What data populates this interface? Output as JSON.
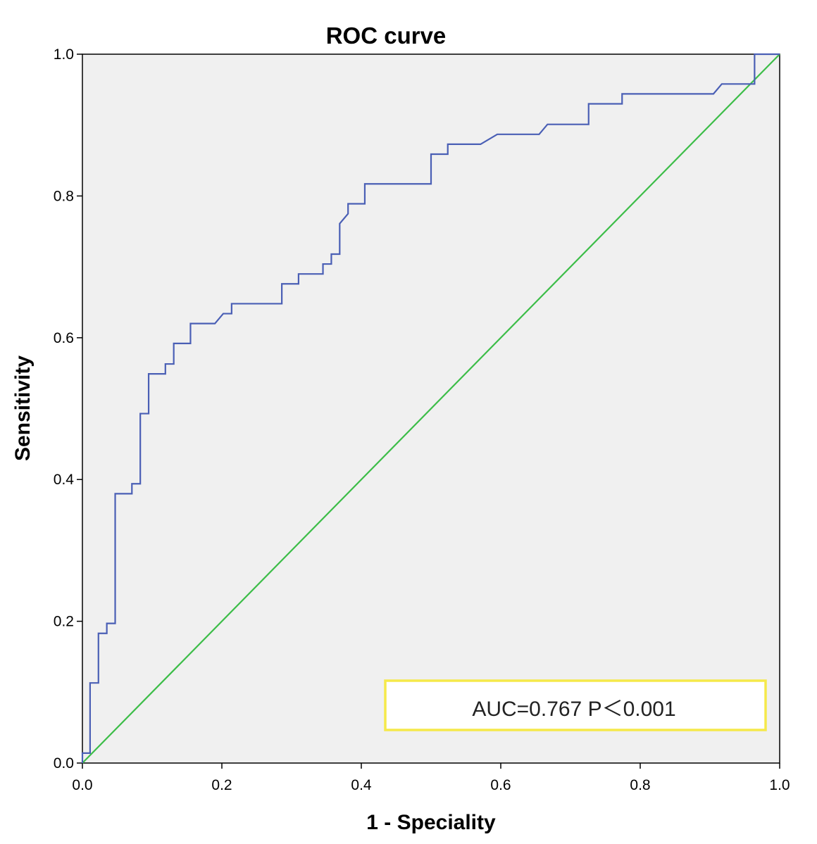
{
  "chart_data": {
    "type": "line",
    "title": "ROC curve",
    "xlabel": "1 - Speciality",
    "ylabel": "Sensitivity",
    "xlim": [
      0,
      1
    ],
    "ylim": [
      0,
      1
    ],
    "x_ticks": [
      "0.0",
      "0.2",
      "0.4",
      "0.6",
      "0.8",
      "1.0"
    ],
    "y_ticks": [
      "0.0",
      "0.2",
      "0.4",
      "0.6",
      "0.8",
      "1.0"
    ],
    "grid": false,
    "background_color": "#f0f0f0",
    "annotation": {
      "text": "AUC=0.767  P＜0.001",
      "position": "bottom-right",
      "border_color": "#f5e94a"
    },
    "series": [
      {
        "color": "#4a5fb5",
        "points": [
          [
            0.0,
            0.0
          ],
          [
            0.0,
            0.014
          ],
          [
            0.011,
            0.014
          ],
          [
            0.011,
            0.113
          ],
          [
            0.023,
            0.113
          ],
          [
            0.023,
            0.183
          ],
          [
            0.035,
            0.183
          ],
          [
            0.035,
            0.197
          ],
          [
            0.047,
            0.197
          ],
          [
            0.047,
            0.38
          ],
          [
            0.071,
            0.38
          ],
          [
            0.071,
            0.394
          ],
          [
            0.083,
            0.394
          ],
          [
            0.083,
            0.493
          ],
          [
            0.095,
            0.493
          ],
          [
            0.095,
            0.549
          ],
          [
            0.119,
            0.549
          ],
          [
            0.119,
            0.563
          ],
          [
            0.131,
            0.563
          ],
          [
            0.131,
            0.592
          ],
          [
            0.155,
            0.592
          ],
          [
            0.155,
            0.62
          ],
          [
            0.19,
            0.62
          ],
          [
            0.202,
            0.634
          ],
          [
            0.214,
            0.634
          ],
          [
            0.214,
            0.648
          ],
          [
            0.286,
            0.648
          ],
          [
            0.286,
            0.676
          ],
          [
            0.31,
            0.676
          ],
          [
            0.31,
            0.69
          ],
          [
            0.345,
            0.69
          ],
          [
            0.345,
            0.704
          ],
          [
            0.357,
            0.704
          ],
          [
            0.357,
            0.718
          ],
          [
            0.369,
            0.718
          ],
          [
            0.369,
            0.761
          ],
          [
            0.381,
            0.775
          ],
          [
            0.381,
            0.789
          ],
          [
            0.405,
            0.789
          ],
          [
            0.405,
            0.817
          ],
          [
            0.5,
            0.817
          ],
          [
            0.5,
            0.859
          ],
          [
            0.524,
            0.859
          ],
          [
            0.524,
            0.873
          ],
          [
            0.571,
            0.873
          ],
          [
            0.595,
            0.887
          ],
          [
            0.655,
            0.887
          ],
          [
            0.667,
            0.901
          ],
          [
            0.726,
            0.901
          ],
          [
            0.726,
            0.93
          ],
          [
            0.774,
            0.93
          ],
          [
            0.774,
            0.944
          ],
          [
            0.905,
            0.944
          ],
          [
            0.917,
            0.958
          ],
          [
            0.964,
            0.958
          ],
          [
            0.964,
            1.0
          ],
          [
            1.0,
            1.0
          ]
        ]
      },
      {
        "color": "#3cbd48",
        "points": [
          [
            0,
            0
          ],
          [
            1,
            1
          ]
        ]
      }
    ]
  }
}
